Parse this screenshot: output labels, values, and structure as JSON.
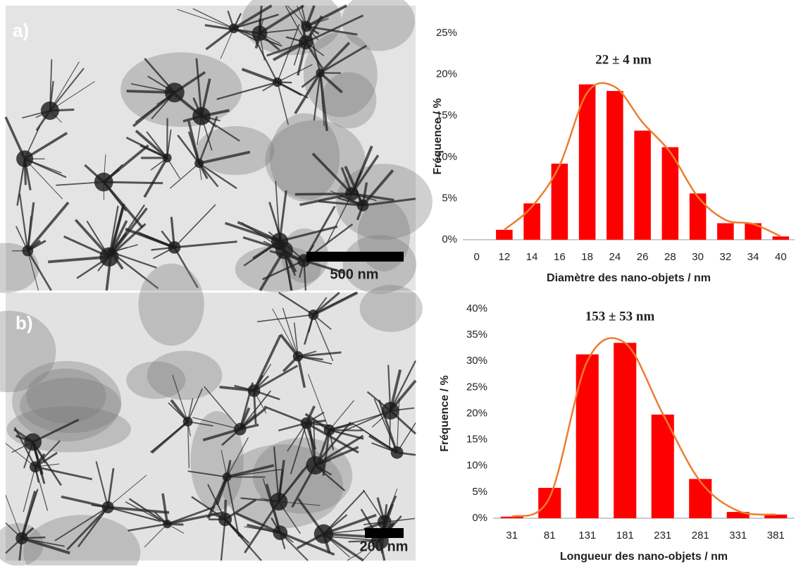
{
  "images": [
    {
      "label": "a)",
      "scale": "500 nm"
    },
    {
      "label": "b)",
      "scale": "200 nm"
    }
  ],
  "chart_data": [
    {
      "type": "bar",
      "title": "22 ± 4 nm",
      "x_label": "Diamètre des nano-objets / nm",
      "y_label": "Fréquence / %",
      "categories": [
        "0",
        "12",
        "14",
        "16",
        "18",
        "24",
        "26",
        "28",
        "30",
        "32",
        "34",
        "40"
      ],
      "series": [
        {
          "color": "#ff0000",
          "values": [
            0,
            1.2,
            4.4,
            9.2,
            18.8,
            18.0,
            13.2,
            11.2,
            5.6,
            2.0,
            2.0,
            0.4
          ]
        },
        {
          "type": "line",
          "color": "#ed7d31",
          "values": [
            null,
            1.2,
            4.0,
            9.0,
            17.8,
            18.5,
            14.2,
            10.6,
            5.2,
            2.4,
            1.9,
            0.4
          ]
        }
      ],
      "ylim": [
        0,
        25
      ],
      "yticks": [
        {
          "value": 0,
          "label": "0%"
        },
        {
          "value": 5,
          "label": "5%"
        },
        {
          "value": 10,
          "label": "10%"
        },
        {
          "value": 15,
          "label": "15%"
        },
        {
          "value": 20,
          "label": "20%"
        },
        {
          "value": 25,
          "label": "25%"
        }
      ],
      "grid": false
    },
    {
      "type": "bar",
      "title": "153 ± 53 nm",
      "x_label": "Longueur des nano-objets / nm",
      "y_label": "Fréquence / %",
      "categories": [
        "31",
        "81",
        "131",
        "181",
        "231",
        "281",
        "331",
        "381"
      ],
      "series": [
        {
          "color": "#ff0000",
          "values": [
            0.3,
            5.8,
            31.3,
            33.5,
            19.8,
            7.5,
            1.2,
            0.7
          ]
        },
        {
          "type": "line",
          "color": "#ed7d31",
          "values": [
            0.3,
            4.0,
            30.0,
            33.5,
            20.0,
            7.0,
            1.4,
            0.7
          ]
        }
      ],
      "ylim": [
        0,
        40
      ],
      "yticks": [
        {
          "value": 0,
          "label": "0%"
        },
        {
          "value": 5,
          "label": "5%"
        },
        {
          "value": 10,
          "label": "10%"
        },
        {
          "value": 15,
          "label": "15%"
        },
        {
          "value": 20,
          "label": "20%"
        },
        {
          "value": 25,
          "label": "25%"
        },
        {
          "value": 30,
          "label": "30%"
        },
        {
          "value": 35,
          "label": "35%"
        },
        {
          "value": 40,
          "label": "40%"
        }
      ],
      "grid": false
    }
  ]
}
